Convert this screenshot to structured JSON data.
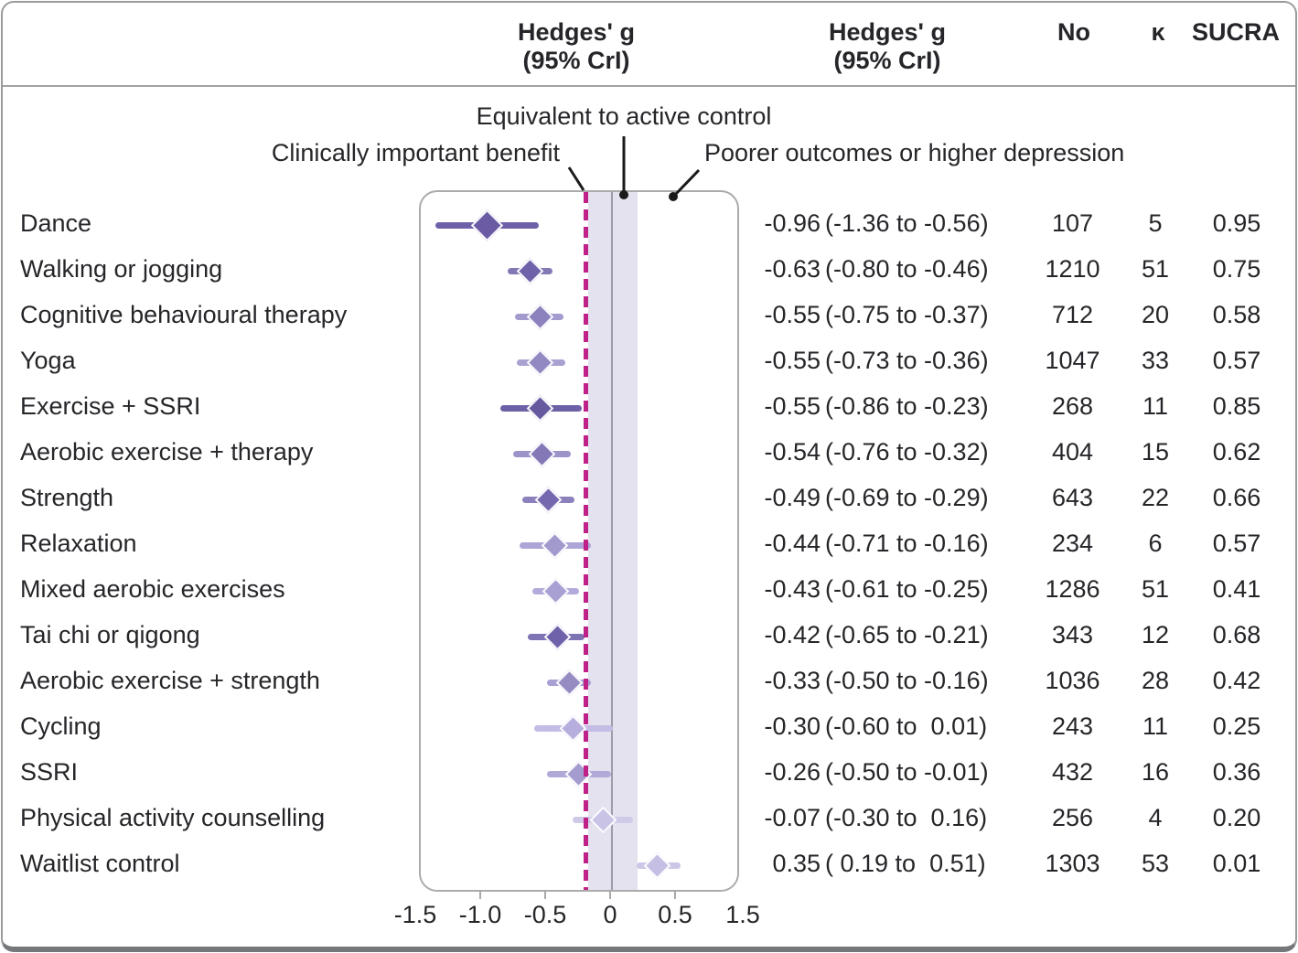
{
  "header": {
    "col1_line1": "Hedges' g",
    "col1_line2": "(95% CrI)",
    "col2_line1": "Hedges' g",
    "col2_line2": "(95% CrI)",
    "n_label": "No",
    "kappa_label": "κ",
    "sucra_label": "SUCRA"
  },
  "annotations": {
    "equivalent": "Equivalent to active control",
    "clinical": "Clinically important benefit",
    "poorer": "Poorer outcomes or higher depression"
  },
  "colors": {
    "threshold_line": "#c02189",
    "equivalence_band": "#e4e2ee",
    "zero_line": "#9d9caa",
    "text": "#26262a",
    "leader": "#1a1a1a"
  },
  "chart_data": {
    "type": "forest",
    "x_axis": {
      "ticks": [
        -1.5,
        -1.0,
        -0.5,
        0,
        0.5,
        1.5
      ],
      "tick_labels": [
        "-1.5",
        "-1.0",
        "-0.5",
        "0",
        "0.5",
        "1.5"
      ],
      "compressed_above": 0.5
    },
    "clinical_threshold": -0.2,
    "equivalence_band": [
      -0.18,
      0.2
    ],
    "rows": [
      {
        "label": "Dance",
        "g": -0.96,
        "lo": -1.36,
        "hi": -0.56,
        "effect": "-0.96",
        "ci": "(-1.36 to -0.56)",
        "n": "107",
        "k": "5",
        "sucra": "0.95",
        "diamond": "#6a5ba4",
        "line": "#6f61a8"
      },
      {
        "label": "Walking or jogging",
        "g": -0.63,
        "lo": -0.8,
        "hi": -0.46,
        "effect": "-0.63",
        "ci": "(-0.80 to -0.46)",
        "n": "1210",
        "k": "51",
        "sucra": "0.75",
        "diamond": "#6f62aa",
        "line": "#8478b5"
      },
      {
        "label": "Cognitive behavioural therapy",
        "g": -0.55,
        "lo": -0.75,
        "hi": -0.37,
        "effect": "-0.55",
        "ci": "(-0.75 to -0.37)",
        "n": "712",
        "k": "20",
        "sucra": "0.58",
        "diamond": "#8d82be",
        "line": "#a39bce"
      },
      {
        "label": "Yoga",
        "g": -0.55,
        "lo": -0.73,
        "hi": -0.36,
        "effect": "-0.55",
        "ci": "(-0.73 to -0.36)",
        "n": "1047",
        "k": "33",
        "sucra": "0.57",
        "diamond": "#9288c2",
        "line": "#a9a1d2"
      },
      {
        "label": "Exercise + SSRI",
        "g": -0.55,
        "lo": -0.86,
        "hi": -0.23,
        "effect": "-0.55",
        "ci": "(-0.86 to -0.23)",
        "n": "268",
        "k": "11",
        "sucra": "0.85",
        "diamond": "#67599f",
        "line": "#6d60a6"
      },
      {
        "label": "Aerobic exercise + therapy",
        "g": -0.54,
        "lo": -0.76,
        "hi": -0.32,
        "effect": "-0.54",
        "ci": "(-0.76 to -0.32)",
        "n": "404",
        "k": "15",
        "sucra": "0.62",
        "diamond": "#8478b7",
        "line": "#9c93c8"
      },
      {
        "label": "Strength",
        "g": -0.49,
        "lo": -0.69,
        "hi": -0.29,
        "effect": "-0.49",
        "ci": "(-0.69 to -0.29)",
        "n": "643",
        "k": "22",
        "sucra": "0.66",
        "diamond": "#7568ae",
        "line": "#8c81bc"
      },
      {
        "label": "Relaxation",
        "g": -0.44,
        "lo": -0.71,
        "hi": -0.16,
        "effect": "-0.44",
        "ci": "(-0.71 to -0.16)",
        "n": "234",
        "k": "6",
        "sucra": "0.57",
        "diamond": "#a29acd",
        "line": "#ada5d6"
      },
      {
        "label": "Mixed aerobic exercises",
        "g": -0.43,
        "lo": -0.61,
        "hi": -0.25,
        "effect": "-0.43",
        "ci": "(-0.61 to -0.25)",
        "n": "1286",
        "k": "51",
        "sucra": "0.41",
        "diamond": "#a89fd3",
        "line": "#b3abdb"
      },
      {
        "label": "Tai chi or qigong",
        "g": -0.42,
        "lo": -0.65,
        "hi": -0.21,
        "effect": "-0.42",
        "ci": "(-0.65 to -0.21)",
        "n": "343",
        "k": "12",
        "sucra": "0.68",
        "diamond": "#6f62ab",
        "line": "#7e73b3"
      },
      {
        "label": "Aerobic exercise + strength",
        "g": -0.33,
        "lo": -0.5,
        "hi": -0.16,
        "effect": "-0.33",
        "ci": "(-0.50 to -0.16)",
        "n": "1036",
        "k": "28",
        "sucra": "0.42",
        "diamond": "#968cc2",
        "line": "#a89fd2"
      },
      {
        "label": "Cycling",
        "g": -0.3,
        "lo": -0.6,
        "hi": 0.01,
        "effect": "-0.30",
        "ci": "(-0.60 to  0.01)",
        "n": "243",
        "k": "11",
        "sucra": "0.25",
        "diamond": "#b6aedd",
        "line": "#c3bce4"
      },
      {
        "label": "SSRI",
        "g": -0.26,
        "lo": -0.5,
        "hi": -0.01,
        "effect": "-0.26",
        "ci": "(-0.50 to -0.01)",
        "n": "432",
        "k": "16",
        "sucra": "0.36",
        "diamond": "#a49bce",
        "line": "#b1a9d8"
      },
      {
        "label": "Physical activity counselling",
        "g": -0.07,
        "lo": -0.3,
        "hi": 0.16,
        "effect": "-0.07",
        "ci": "(-0.30 to  0.16)",
        "n": "256",
        "k": "4",
        "sucra": "0.20",
        "diamond": "#c9c3e6",
        "line": "#d0cae9"
      },
      {
        "label": "Waitlist control",
        "g": 0.35,
        "lo": 0.19,
        "hi": 0.51,
        "effect": "0.35",
        "ci": "( 0.19 to  0.51)",
        "n": "1303",
        "k": "53",
        "sucra": "0.01",
        "diamond": "#c5bfe3",
        "line": "#ccc6e8"
      }
    ]
  }
}
